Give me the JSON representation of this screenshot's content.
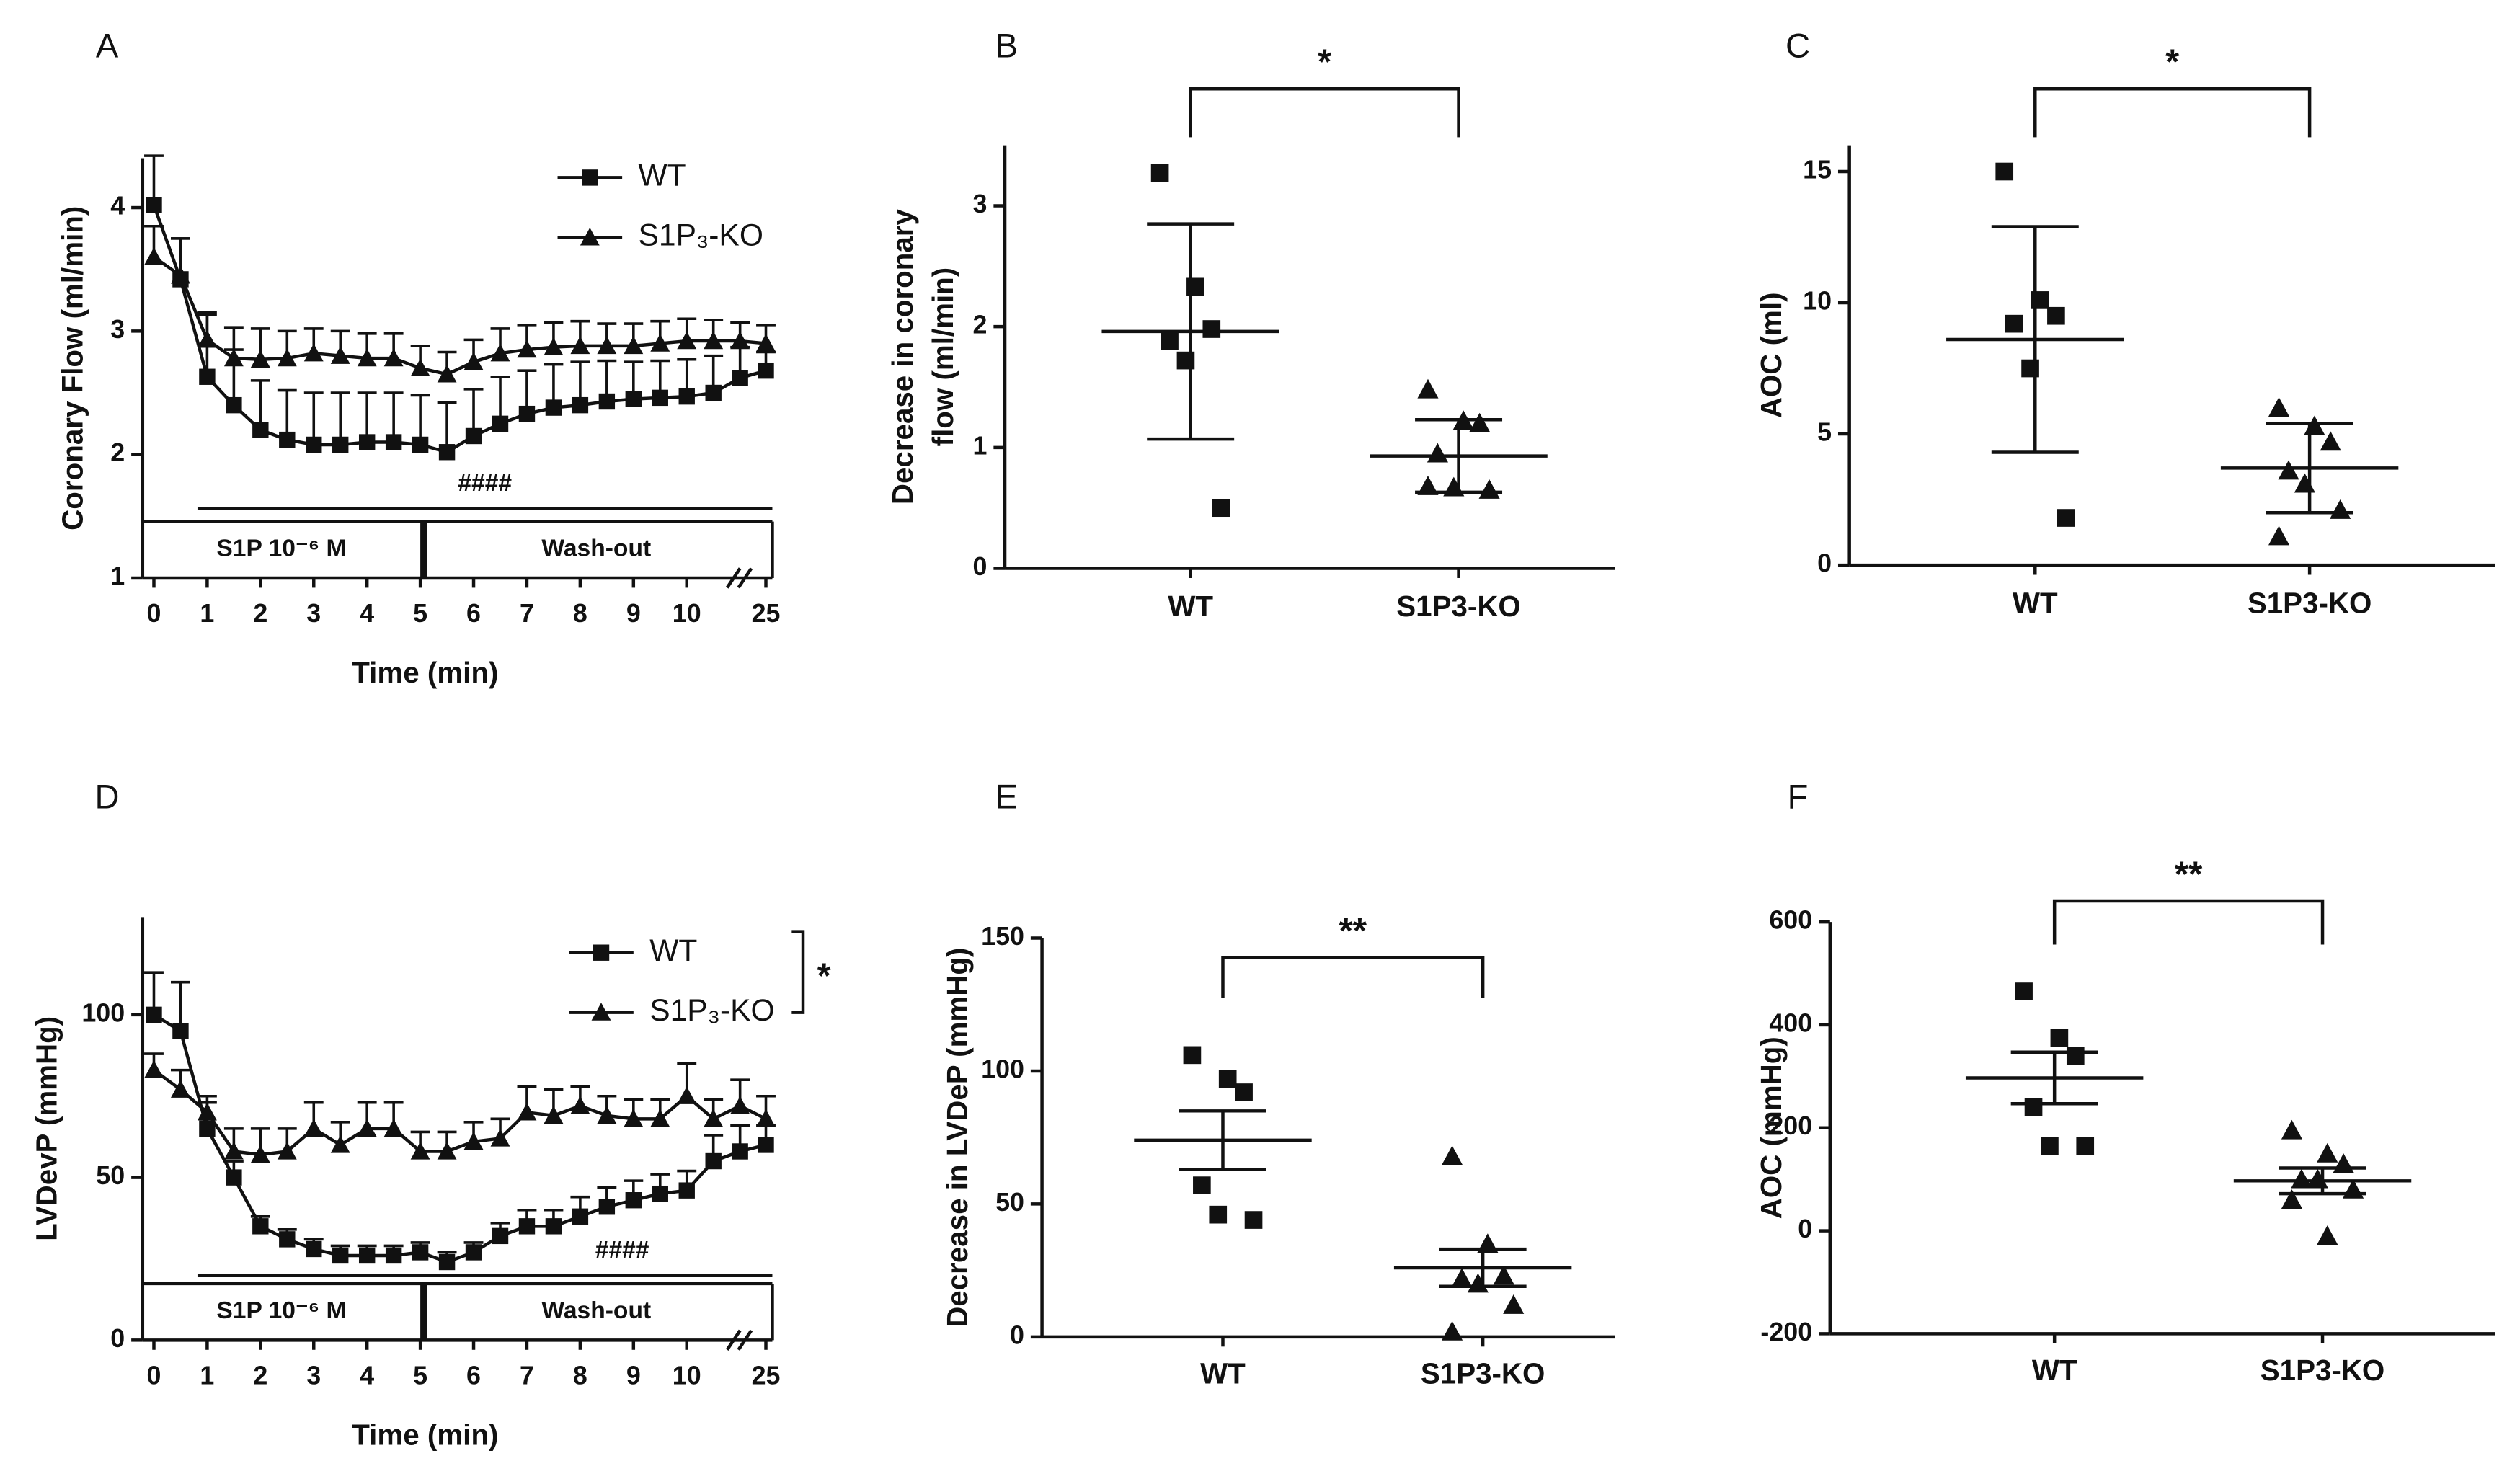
{
  "chart_data": [
    {
      "type": "line",
      "panel_label": "A",
      "ylabel": "Coronary Flow (ml/min)",
      "xlabel": "Time (min)",
      "categories": [
        "0",
        null,
        "1",
        null,
        "2",
        null,
        "3",
        null,
        "4",
        null,
        "5",
        null,
        "6",
        null,
        "7",
        null,
        "8",
        null,
        "9",
        null,
        "10",
        null,
        null,
        "25"
      ],
      "ylim": [
        1,
        4.4
      ],
      "yticks": [
        1,
        2,
        3,
        4
      ],
      "series": [
        {
          "name": "WT",
          "marker": "square",
          "color": "#111111",
          "values": [
            4.02,
            3.42,
            2.63,
            2.4,
            2.2,
            2.12,
            2.08,
            2.08,
            2.1,
            2.1,
            2.08,
            2.02,
            2.15,
            2.25,
            2.33,
            2.38,
            2.4,
            2.43,
            2.45,
            2.46,
            2.47,
            2.5,
            2.62,
            2.68
          ],
          "errors": [
            0.4,
            0.33,
            0.5,
            0.45,
            0.4,
            0.4,
            0.42,
            0.42,
            0.4,
            0.4,
            0.4,
            0.4,
            0.38,
            0.38,
            0.35,
            0.35,
            0.35,
            0.33,
            0.3,
            0.3,
            0.3,
            0.3,
            0.25,
            0.15
          ]
        },
        {
          "name": "S1P₃-KO",
          "marker": "triangle",
          "color": "#111111",
          "values": [
            3.6,
            3.45,
            2.93,
            2.78,
            2.77,
            2.78,
            2.82,
            2.8,
            2.78,
            2.78,
            2.7,
            2.65,
            2.75,
            2.82,
            2.85,
            2.87,
            2.88,
            2.88,
            2.88,
            2.9,
            2.92,
            2.92,
            2.92,
            2.9
          ],
          "errors": [
            0.25,
            0.3,
            0.22,
            0.25,
            0.25,
            0.22,
            0.2,
            0.2,
            0.2,
            0.2,
            0.18,
            0.18,
            0.18,
            0.2,
            0.2,
            0.2,
            0.2,
            0.18,
            0.18,
            0.18,
            0.18,
            0.17,
            0.15,
            0.15
          ]
        }
      ],
      "hash_label": "####",
      "phases": [
        "S1P 10⁻⁶ M",
        "Wash-out"
      ]
    },
    {
      "type": "dotplot",
      "panel_label": "B",
      "ylabel": [
        "Decrease in coronary",
        "flow (ml/min)"
      ],
      "categories": [
        "WT",
        "S1P3-KO"
      ],
      "markers": [
        "square",
        "triangle"
      ],
      "ylim": [
        0,
        3.5
      ],
      "yticks": [
        0,
        1,
        2,
        3
      ],
      "groups": [
        {
          "values": [
            3.27,
            2.33,
            1.98,
            1.88,
            1.72,
            0.5
          ],
          "mean": 1.96,
          "error": 0.89
        },
        {
          "values": [
            1.48,
            1.22,
            1.2,
            0.95,
            0.67,
            0.65,
            0.68
          ],
          "mean": 0.93,
          "error": 0.3
        }
      ],
      "significance": "*"
    },
    {
      "type": "dotplot",
      "panel_label": "C",
      "ylabel": "AOC (ml)",
      "categories": [
        "WT",
        "S1P3-KO"
      ],
      "markers": [
        "square",
        "triangle"
      ],
      "ylim": [
        0,
        16
      ],
      "yticks": [
        0,
        5,
        10,
        15
      ],
      "groups": [
        {
          "values": [
            15,
            10.1,
            9.5,
            9.2,
            7.5,
            1.8
          ],
          "mean": 8.6,
          "error": 4.3
        },
        {
          "values": [
            6,
            5.3,
            4.7,
            3.6,
            3.1,
            2.1,
            1.1
          ],
          "mean": 3.7,
          "error": 1.7
        }
      ],
      "significance": "*"
    },
    {
      "type": "line",
      "panel_label": "D",
      "ylabel": "LVDevP (mmHg)",
      "xlabel": "Time (min)",
      "categories": [
        "0",
        null,
        "1",
        null,
        "2",
        null,
        "3",
        null,
        "4",
        null,
        "5",
        null,
        "6",
        null,
        "7",
        null,
        "8",
        null,
        "9",
        null,
        "10",
        null,
        null,
        "25"
      ],
      "ylim": [
        0,
        130
      ],
      "yticks": [
        0,
        50,
        100
      ],
      "series": [
        {
          "name": "WT",
          "marker": "square",
          "color": "#111111",
          "values": [
            100,
            95,
            65,
            50,
            35,
            31,
            28,
            26,
            26,
            26,
            27,
            24,
            27,
            32,
            35,
            35,
            38,
            41,
            43,
            45,
            46,
            55,
            58,
            60
          ],
          "errors": [
            13,
            15,
            8,
            5,
            3,
            3,
            3,
            3,
            3,
            3,
            3,
            3,
            3,
            4,
            5,
            5,
            6,
            6,
            6,
            6,
            6,
            8,
            8,
            6
          ]
        },
        {
          "name": "S1P₃-KO",
          "marker": "triangle",
          "color": "#111111",
          "values": [
            83,
            77,
            70,
            58,
            57,
            58,
            65,
            60,
            65,
            65,
            58,
            58,
            61,
            62,
            70,
            69,
            72,
            69,
            68,
            68,
            75,
            68,
            72,
            68
          ],
          "errors": [
            5,
            6,
            5,
            7,
            8,
            7,
            8,
            7,
            8,
            8,
            6,
            6,
            6,
            6,
            8,
            8,
            6,
            6,
            6,
            6,
            10,
            6,
            8,
            7
          ]
        }
      ],
      "hash_label": "####",
      "phases": [
        "S1P 10⁻⁶ M",
        "Wash-out"
      ],
      "significance": "*"
    },
    {
      "type": "dotplot",
      "panel_label": "E",
      "ylabel": "Decrease in LVDeP (mmHg)",
      "categories": [
        "WT",
        "S1P3-KO"
      ],
      "markers": [
        "square",
        "triangle"
      ],
      "ylim": [
        0,
        150
      ],
      "yticks": [
        0,
        50,
        100,
        150
      ],
      "groups": [
        {
          "values": [
            106,
            97,
            92,
            57,
            46,
            44
          ],
          "mean": 74,
          "error": 11
        },
        {
          "values": [
            68,
            35,
            23,
            22,
            20,
            12,
            2
          ],
          "mean": 26,
          "error": 7
        }
      ],
      "significance": "**"
    },
    {
      "type": "dotplot",
      "panel_label": "F",
      "ylabel": "AOC (mmHg)",
      "categories": [
        "WT",
        "S1P3-KO"
      ],
      "markers": [
        "square",
        "triangle"
      ],
      "ylim": [
        -200,
        600
      ],
      "yticks": [
        -200,
        0,
        200,
        400,
        600
      ],
      "groups": [
        {
          "values": [
            465,
            375,
            340,
            240,
            165,
            165
          ],
          "mean": 297,
          "error": 50
        },
        {
          "values": [
            195,
            150,
            130,
            100,
            100,
            80,
            60,
            -10
          ],
          "mean": 97,
          "error": 25
        }
      ],
      "significance": "**"
    }
  ]
}
